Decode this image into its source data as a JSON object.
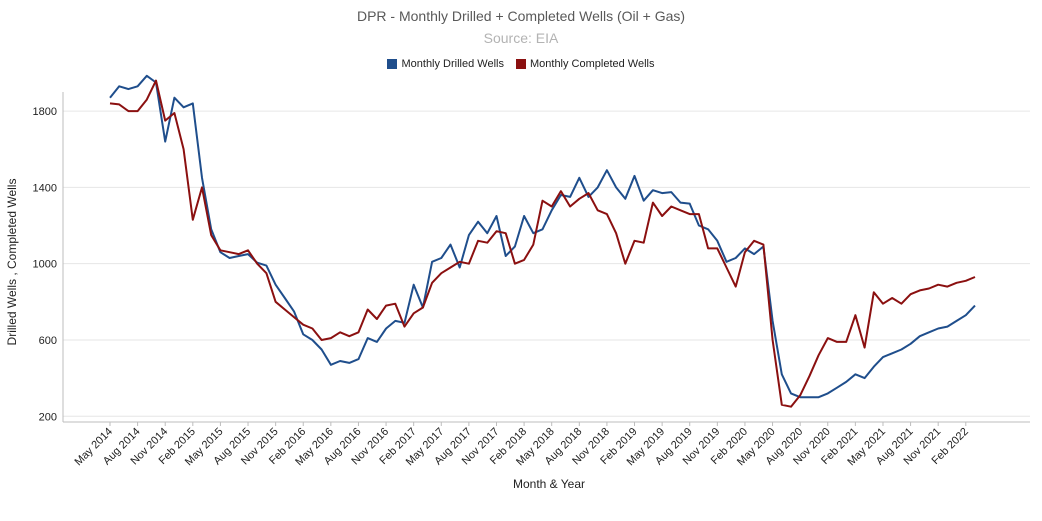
{
  "chart_data": {
    "type": "line",
    "title": "DPR - Monthly Drilled + Completed Wells (Oil + Gas)",
    "subtitle": "Source: EIA",
    "xlabel": "Month & Year",
    "ylabel": "Drilled Wells , Completed Wells",
    "ylim": [
      170,
      1900
    ],
    "yticks": [
      200,
      600,
      1000,
      1400,
      1800
    ],
    "grid": "horizontal",
    "legend": "top-center",
    "x_tick_labels": [
      "May 2014",
      "Aug 2014",
      "Nov 2014",
      "Feb 2015",
      "May 2015",
      "Aug 2015",
      "Nov 2015",
      "Feb 2016",
      "May 2016",
      "Aug 2016",
      "Nov 2016",
      "Feb 2017",
      "May 2017",
      "Aug 2017",
      "Nov 2017",
      "Feb 2018",
      "May 2018",
      "Aug 2018",
      "Nov 2018",
      "Feb 2019",
      "May 2019",
      "Aug 2019",
      "Nov 2019",
      "Feb 2020",
      "May 2020",
      "Aug 2020",
      "Nov 2020",
      "Feb 2021",
      "May 2021",
      "Aug 2021",
      "Nov 2021",
      "Feb 2022"
    ],
    "x": [
      "2014-05",
      "2014-06",
      "2014-07",
      "2014-08",
      "2014-09",
      "2014-10",
      "2014-11",
      "2014-12",
      "2015-01",
      "2015-02",
      "2015-03",
      "2015-04",
      "2015-05",
      "2015-06",
      "2015-07",
      "2015-08",
      "2015-09",
      "2015-10",
      "2015-11",
      "2015-12",
      "2016-01",
      "2016-02",
      "2016-03",
      "2016-04",
      "2016-05",
      "2016-06",
      "2016-07",
      "2016-08",
      "2016-09",
      "2016-10",
      "2016-11",
      "2016-12",
      "2017-01",
      "2017-02",
      "2017-03",
      "2017-04",
      "2017-05",
      "2017-06",
      "2017-07",
      "2017-08",
      "2017-09",
      "2017-10",
      "2017-11",
      "2017-12",
      "2018-01",
      "2018-02",
      "2018-03",
      "2018-04",
      "2018-05",
      "2018-06",
      "2018-07",
      "2018-08",
      "2018-09",
      "2018-10",
      "2018-11",
      "2018-12",
      "2019-01",
      "2019-02",
      "2019-03",
      "2019-04",
      "2019-05",
      "2019-06",
      "2019-07",
      "2019-08",
      "2019-09",
      "2019-10",
      "2019-11",
      "2019-12",
      "2020-01",
      "2020-02",
      "2020-03",
      "2020-04",
      "2020-05",
      "2020-06",
      "2020-07",
      "2020-08",
      "2020-09",
      "2020-10",
      "2020-11",
      "2020-12",
      "2021-01",
      "2021-02",
      "2021-03",
      "2021-04",
      "2021-05",
      "2021-06",
      "2021-07",
      "2021-08",
      "2021-09",
      "2021-10",
      "2021-11",
      "2021-12",
      "2022-01",
      "2022-02",
      "2022-03"
    ],
    "series": [
      {
        "name": "Monthly Drilled Wells",
        "color": "#1f4e8c",
        "values": [
          1870,
          1930,
          1915,
          1930,
          1985,
          1950,
          1640,
          1870,
          1820,
          1840,
          1450,
          1180,
          1060,
          1030,
          1040,
          1050,
          1005,
          990,
          890,
          820,
          750,
          630,
          600,
          550,
          470,
          490,
          480,
          500,
          610,
          590,
          660,
          700,
          690,
          890,
          770,
          1010,
          1030,
          1100,
          980,
          1150,
          1220,
          1160,
          1250,
          1040,
          1090,
          1250,
          1160,
          1180,
          1280,
          1360,
          1350,
          1450,
          1350,
          1400,
          1490,
          1400,
          1340,
          1460,
          1330,
          1385,
          1370,
          1375,
          1320,
          1315,
          1200,
          1180,
          1120,
          1010,
          1030,
          1080,
          1050,
          1090,
          700,
          420,
          320,
          300,
          300,
          300,
          320,
          350,
          380,
          420,
          400,
          460,
          510,
          530,
          550,
          580,
          620,
          640,
          660,
          670,
          700,
          730,
          780
        ]
      },
      {
        "name": "Monthly Completed Wells",
        "color": "#8b1010",
        "values": [
          1840,
          1835,
          1800,
          1800,
          1860,
          1960,
          1750,
          1790,
          1600,
          1230,
          1400,
          1150,
          1070,
          1060,
          1050,
          1070,
          1000,
          950,
          800,
          760,
          720,
          680,
          660,
          600,
          610,
          640,
          620,
          640,
          760,
          710,
          780,
          790,
          670,
          740,
          770,
          900,
          950,
          980,
          1010,
          1000,
          1120,
          1110,
          1170,
          1160,
          1000,
          1020,
          1100,
          1330,
          1300,
          1380,
          1300,
          1340,
          1370,
          1280,
          1260,
          1160,
          1000,
          1120,
          1110,
          1320,
          1250,
          1300,
          1280,
          1260,
          1260,
          1080,
          1080,
          980,
          880,
          1060,
          1120,
          1100,
          600,
          260,
          250,
          310,
          410,
          520,
          610,
          590,
          590,
          730,
          560,
          850,
          790,
          820,
          790,
          840,
          860,
          870,
          890,
          880,
          900,
          910,
          930
        ]
      }
    ]
  }
}
